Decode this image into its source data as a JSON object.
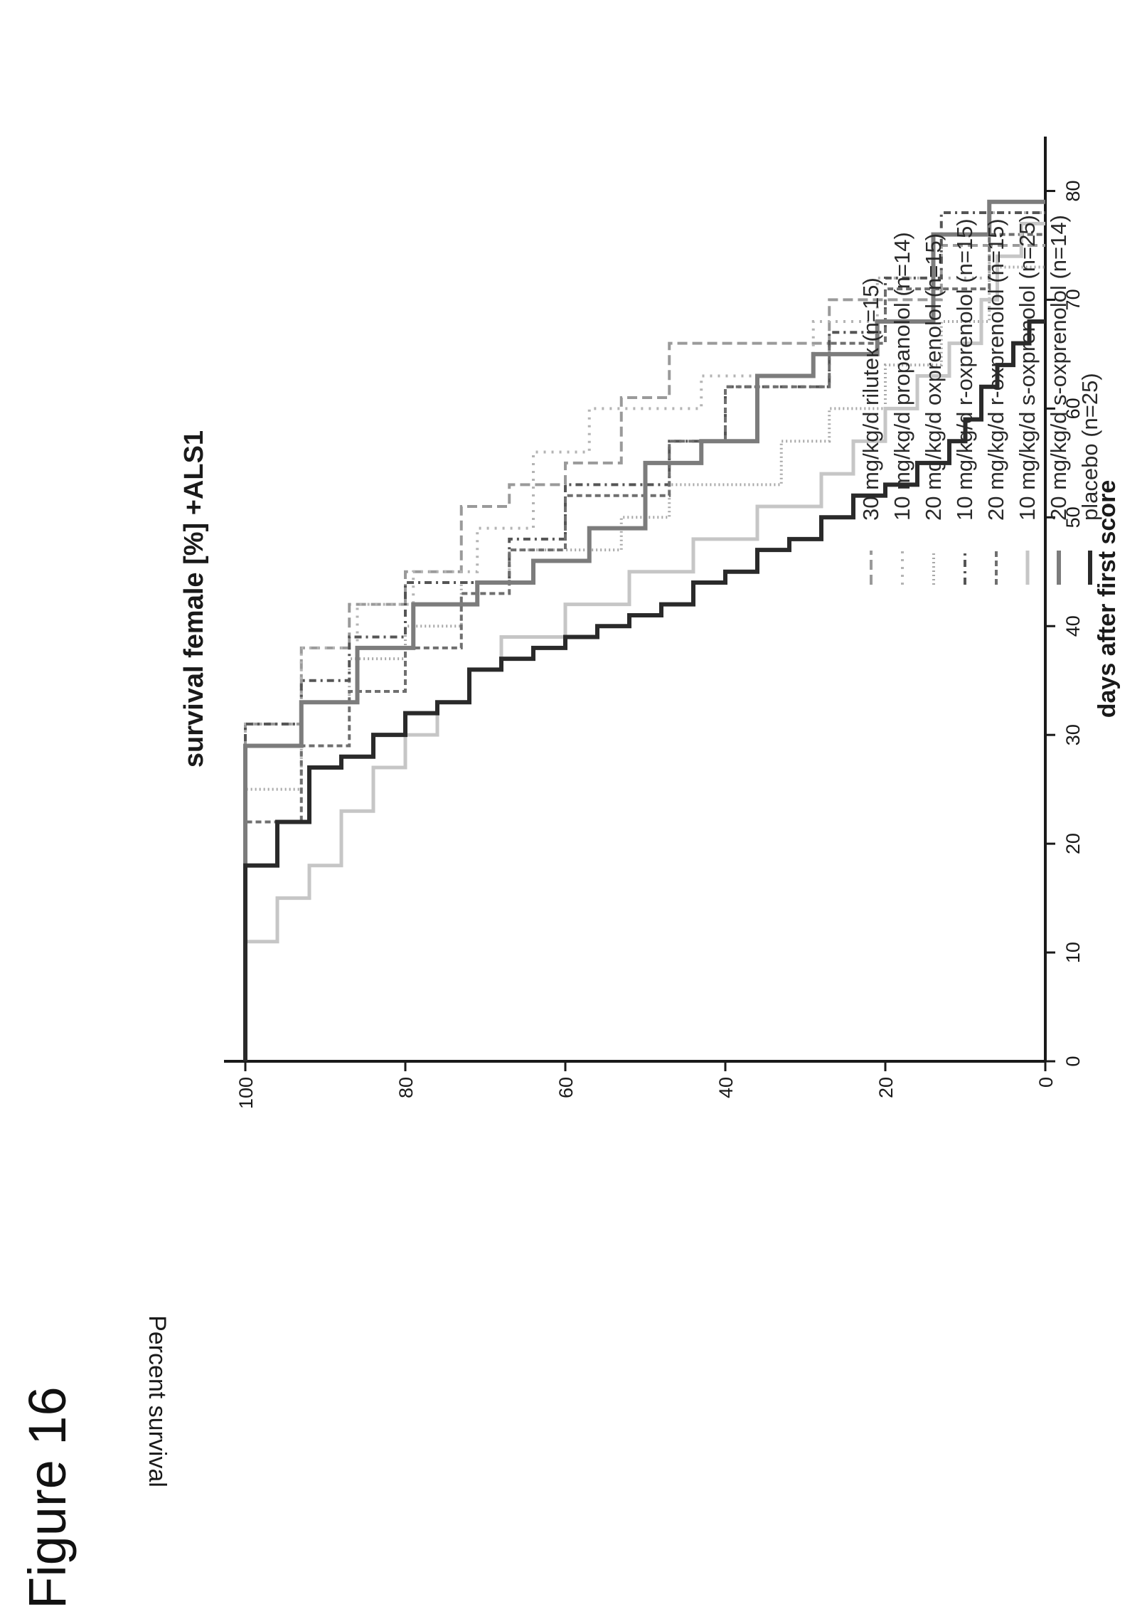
{
  "figure": {
    "label": "Figure 16"
  },
  "chart_data": {
    "type": "line",
    "step": true,
    "title": "survival female [%]  +ALS1",
    "xlabel": "days after first score",
    "ylabel": "Percent survival",
    "xlim": [
      0,
      85
    ],
    "ylim": [
      0,
      100
    ],
    "xticks": [
      "0",
      "10",
      "20",
      "30",
      "40",
      "50",
      "60",
      "70",
      "80"
    ],
    "yticks": [
      "0",
      "20",
      "40",
      "60",
      "80",
      "100"
    ],
    "legend_position": "right",
    "series": [
      {
        "name": "30 mg/kg/d riluteк (n=15)",
        "color": "#9a9a9a",
        "dash": "14,7",
        "width": 4,
        "x": [
          0,
          31,
          38,
          42,
          45,
          51,
          53,
          55,
          61,
          66,
          70,
          75
        ],
        "y": [
          100,
          93,
          87,
          80,
          73,
          67,
          60,
          53,
          47,
          27,
          13,
          0
        ]
      },
      {
        "name": "10 mg/kg/d propanolol (n=14)",
        "color": "#b4b4b4",
        "dash": "3,8",
        "width": 4,
        "x": [
          0,
          31,
          38,
          42,
          45,
          49,
          56,
          60,
          63,
          68,
          72,
          78
        ],
        "y": [
          100,
          93,
          86,
          79,
          71,
          64,
          57,
          43,
          29,
          21,
          7,
          0
        ]
      },
      {
        "name": "20 mg/kg/d oxprenolol (n=15)",
        "color": "#a8a8a8",
        "dash": "2,4",
        "width": 4,
        "x": [
          0,
          25,
          33,
          37,
          40,
          44,
          47,
          50,
          53,
          57,
          60,
          64,
          68,
          73
        ],
        "y": [
          100,
          93,
          87,
          80,
          73,
          67,
          53,
          47,
          33,
          27,
          20,
          13,
          7,
          0
        ]
      },
      {
        "name": "10 mg/kg/d r-oxprenolol (n=15)",
        "color": "#555555",
        "dash": "10,6,3,6",
        "width": 4,
        "x": [
          0,
          31,
          35,
          39,
          44,
          48,
          53,
          57,
          62,
          67,
          72,
          78
        ],
        "y": [
          100,
          93,
          87,
          80,
          67,
          60,
          47,
          40,
          27,
          20,
          13,
          0
        ]
      },
      {
        "name": "20 mg/kg/d r-oxprenolol (n=15)",
        "color": "#6f6f6f",
        "dash": "8,5",
        "width": 4,
        "x": [
          0,
          22,
          29,
          34,
          38,
          43,
          47,
          52,
          57,
          62,
          66,
          71,
          76
        ],
        "y": [
          100,
          93,
          87,
          80,
          73,
          67,
          60,
          47,
          40,
          27,
          20,
          7,
          0
        ]
      },
      {
        "name": "10 mg/kg/d s-oxprenolol (n=25)",
        "color": "#c6c6c6",
        "dash": "none",
        "width": 5,
        "x": [
          0,
          11,
          15,
          18,
          23,
          27,
          30,
          33,
          36,
          39,
          42,
          45,
          48,
          51,
          54,
          57,
          60,
          63,
          66,
          70,
          74,
          77
        ],
        "y": [
          100,
          96,
          92,
          88,
          84,
          80,
          76,
          72,
          68,
          60,
          52,
          44,
          36,
          28,
          24,
          20,
          16,
          12,
          8,
          6,
          3,
          0
        ]
      },
      {
        "name": "20 mg/kg/d s-oxprenolol (n=14)",
        "color": "#7c7c7c",
        "dash": "none",
        "width": 6,
        "x": [
          0,
          29,
          33,
          38,
          42,
          44,
          46,
          49,
          55,
          57,
          63,
          65,
          68,
          76,
          79
        ],
        "y": [
          100,
          93,
          86,
          79,
          71,
          64,
          57,
          50,
          43,
          36,
          29,
          21,
          14,
          7,
          0
        ]
      },
      {
        "name": "placebo (n=25)",
        "color": "#2a2a2a",
        "dash": "none",
        "width": 6,
        "x": [
          0,
          18,
          22,
          27,
          28,
          30,
          32,
          33,
          36,
          37,
          38,
          39,
          40,
          41,
          42,
          44,
          45,
          47,
          48,
          50,
          52,
          53,
          55,
          57,
          59,
          62,
          64,
          66,
          68
        ],
        "y": [
          100,
          96,
          92,
          88,
          84,
          80,
          76,
          72,
          68,
          64,
          60,
          56,
          52,
          48,
          44,
          40,
          36,
          32,
          28,
          24,
          20,
          16,
          12,
          10,
          8,
          6,
          4,
          2,
          0
        ]
      }
    ]
  }
}
